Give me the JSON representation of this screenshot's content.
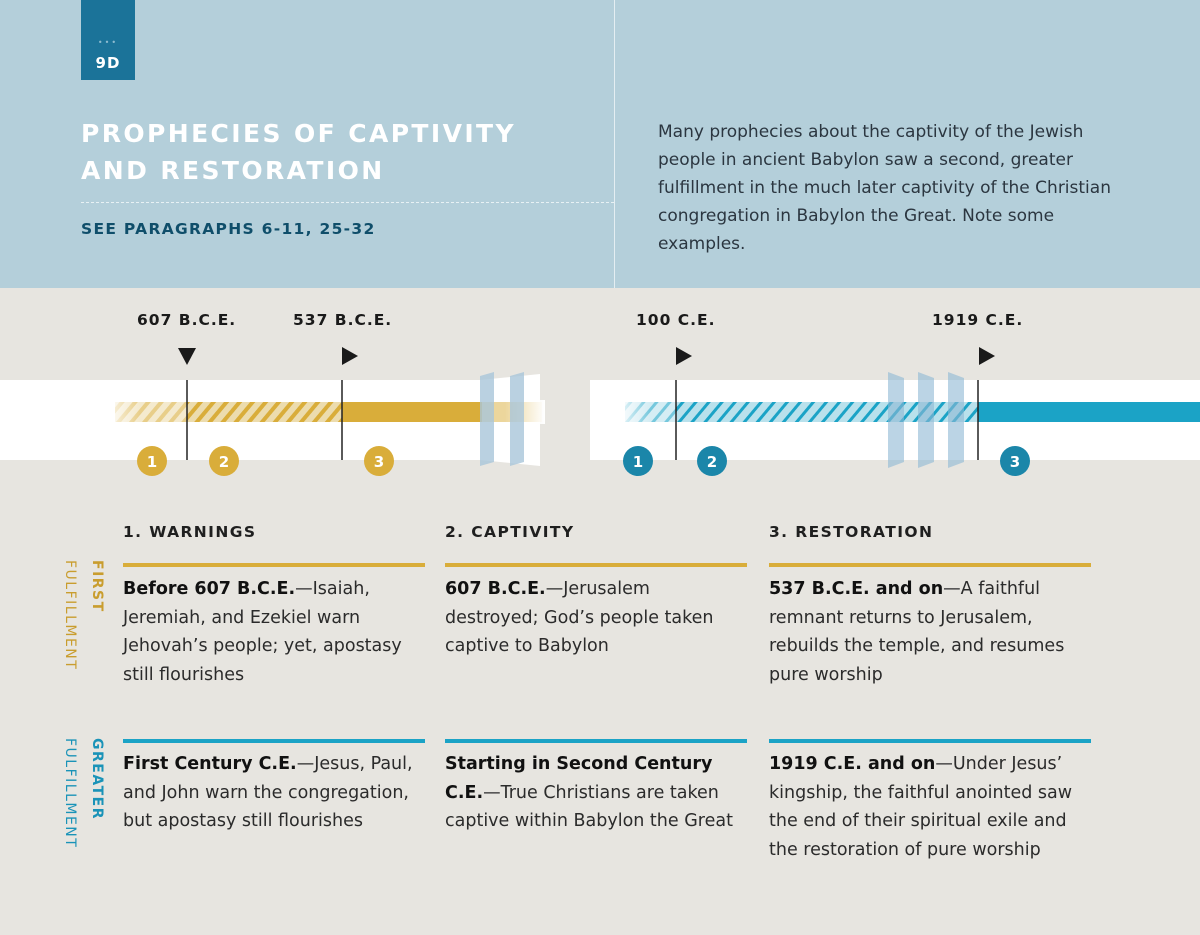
{
  "badge": {
    "dots": "•••",
    "label": "9D"
  },
  "title_lines": [
    "PROPHECIES OF CAPTIVITY",
    "AND RESTORATION"
  ],
  "subtitle": "SEE PARAGRAPHS 6-11, 25-32",
  "intro": "Many prophecies about the captivity of the Jewish people in ancient Babylon saw a second, greater fulfillment in the much later captivity of the Christian congregation in Babylon the Great. Note some examples.",
  "colors": {
    "header": "#b4cfda",
    "badge": "#1b7399",
    "first": "#d9ad3a",
    "greater": "#1ba3c6"
  },
  "timeline": {
    "first": {
      "dates": [
        "607 B.C.E.",
        "537 B.C.E."
      ],
      "markers": [
        "1",
        "2",
        "3"
      ]
    },
    "greater": {
      "dates": [
        "100 C.E.",
        "1919 C.E."
      ],
      "markers": [
        "1",
        "2",
        "3"
      ]
    }
  },
  "columns": [
    "1. WARNINGS",
    "2. CAPTIVITY",
    "3. RESTORATION"
  ],
  "rows": [
    {
      "label_bold": "FIRST",
      "label": "FULFILLMENT",
      "cells": [
        {
          "bold": "Before 607 B.C.E.",
          "text": "—Isaiah, Jeremiah, and Ezekiel warn Jehovah’s people; yet, apostasy still flourishes"
        },
        {
          "bold": "607 B.C.E.",
          "text": "—Jerusalem destroyed; God’s people taken captive to Babylon"
        },
        {
          "bold": "537 B.C.E. and on",
          "text": "—A faithful remnant returns to Jerusalem, rebuilds the temple, and resumes pure worship"
        }
      ]
    },
    {
      "label_bold": "GREATER",
      "label": "FULFILLMENT",
      "cells": [
        {
          "bold": "First Century C.E.",
          "text": "—Jesus, Paul, and John warn the congregation, but apostasy still flourishes"
        },
        {
          "bold": "Starting in Second Century C.E.",
          "text": "—True Christians are taken captive within Babylon the Great"
        },
        {
          "bold": "1919 C.E. and on",
          "text": "—Under Jesus’ kingship, the faithful anointed saw the end of their spiritual exile and the restoration of pure worship"
        }
      ]
    }
  ]
}
